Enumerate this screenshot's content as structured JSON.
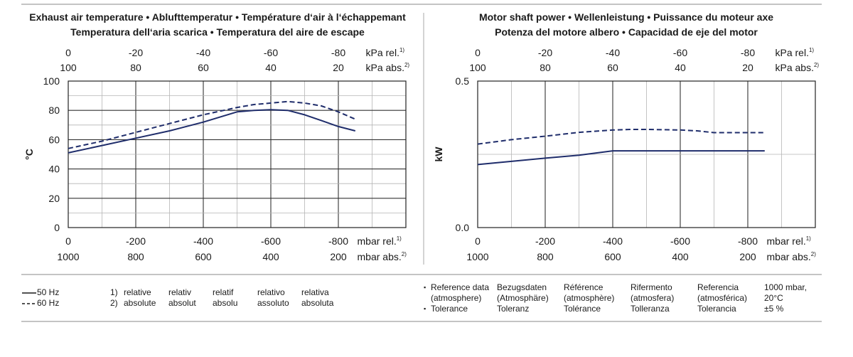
{
  "chart_data": [
    {
      "type": "line",
      "title_line1": "Exhaust air temperature  •  Ablufttemperatur  •  Température d‘air à l‘échappemant",
      "title_line2": "Temperatura dell‘aria scarica  •  Temperatura del aire de escape",
      "ylabel": "°C",
      "ylim": [
        0,
        100
      ],
      "yticks": [
        "0",
        "20",
        "40",
        "60",
        "80",
        "100"
      ],
      "xlim": [
        0,
        -1000
      ],
      "xlabel_bottom1": "mbar rel.",
      "xlabel_bottom1_sup": "1)",
      "xlabel_bottom2": "mbar abs.",
      "xlabel_bottom2_sup": "2)",
      "xticks_bottom1": [
        "0",
        "-200",
        "-400",
        "-600",
        "-800"
      ],
      "xticks_bottom2": [
        "1000",
        "800",
        "600",
        "400",
        "200"
      ],
      "xlabel_top1": "kPa rel.",
      "xlabel_top1_sup": "1)",
      "xlabel_top2": "kPa abs.",
      "xlabel_top2_sup": "2)",
      "xticks_top1": [
        "0",
        "-20",
        "-40",
        "-60",
        "-80"
      ],
      "xticks_top2": [
        "100",
        "80",
        "60",
        "40",
        "20"
      ],
      "grid": true,
      "series": [
        {
          "name": "50 Hz",
          "style": "solid",
          "x": [
            0,
            -100,
            -200,
            -300,
            -400,
            -500,
            -550,
            -600,
            -650,
            -700,
            -750,
            -800,
            -850
          ],
          "y": [
            51,
            56,
            61,
            66,
            72,
            79,
            80,
            80.5,
            80,
            77,
            73,
            69,
            66
          ]
        },
        {
          "name": "60 Hz",
          "style": "dashed",
          "x": [
            0,
            -100,
            -200,
            -300,
            -400,
            -500,
            -550,
            -600,
            -650,
            -700,
            -750,
            -800,
            -850
          ],
          "y": [
            54,
            59,
            65,
            71,
            77,
            82,
            84,
            85,
            86,
            85,
            83,
            79,
            74
          ]
        }
      ]
    },
    {
      "type": "line",
      "title_line1": "Motor shaft power  •  Wellenleistung  •  Puissance du moteur axe",
      "title_line2": "Potenza del motore albero  •  Capacidad de eje del motor",
      "ylabel": "kW",
      "ylim": [
        0,
        0.5
      ],
      "yticks": [
        "0.0",
        "0.5"
      ],
      "xlim": [
        0,
        -1000
      ],
      "xlabel_bottom1": "mbar rel.",
      "xlabel_bottom1_sup": "1)",
      "xlabel_bottom2": "mbar abs.",
      "xlabel_bottom2_sup": "2)",
      "xticks_bottom1": [
        "0",
        "-200",
        "-400",
        "-600",
        "-800"
      ],
      "xticks_bottom2": [
        "1000",
        "800",
        "600",
        "400",
        "200"
      ],
      "xlabel_top1": "kPa rel.",
      "xlabel_top1_sup": "1)",
      "xlabel_top2": "kPa abs.",
      "xlabel_top2_sup": "2)",
      "xticks_top1": [
        "0",
        "-20",
        "-40",
        "-60",
        "-80"
      ],
      "xticks_top2": [
        "100",
        "80",
        "60",
        "40",
        "20"
      ],
      "grid": true,
      "series": [
        {
          "name": "50 Hz",
          "style": "solid",
          "x": [
            0,
            -100,
            -200,
            -300,
            -400,
            -500,
            -600,
            -700,
            -800,
            -850
          ],
          "y": [
            0.215,
            0.226,
            0.237,
            0.247,
            0.262,
            0.262,
            0.262,
            0.262,
            0.262,
            0.262
          ]
        },
        {
          "name": "60 Hz",
          "style": "dashed",
          "x": [
            0,
            -100,
            -200,
            -300,
            -400,
            -450,
            -500,
            -600,
            -650,
            -700,
            -750,
            -800,
            -850
          ],
          "y": [
            0.285,
            0.3,
            0.312,
            0.325,
            0.333,
            0.335,
            0.335,
            0.333,
            0.33,
            0.324,
            0.324,
            0.324,
            0.324
          ]
        }
      ]
    }
  ],
  "legend": {
    "series_50": "50 Hz",
    "series_60": "60 Hz",
    "note1_marker": "1)",
    "note2_marker": "2)",
    "relative": [
      "relative",
      "relativ",
      "relatif",
      "relativo",
      "relativa"
    ],
    "absolute": [
      "absolute",
      "absolut",
      "absolu",
      "assoluto",
      "absoluta"
    ]
  },
  "reference": {
    "bullet": "▪",
    "columns": [
      {
        "line1": "Reference data",
        "line2": "(atmosphere)",
        "line3": "Tolerance"
      },
      {
        "line1": "Bezugsdaten",
        "line2": "(Atmosphäre)",
        "line3": "Toleranz"
      },
      {
        "line1": "Référence",
        "line2": "(atmosphère)",
        "line3": "Tolérance"
      },
      {
        "line1": "Rifermento",
        "line2": "(atmosfera)",
        "line3": "Tolleranza"
      },
      {
        "line1": "Referencia",
        "line2": "(atmosférica)",
        "line3": "Tolerancia"
      },
      {
        "line1": "1000 mbar,",
        "line2": "20°C",
        "line3": "±5 %"
      }
    ]
  },
  "colors": {
    "series": "#1f2d6b",
    "axis": "#222222",
    "grid": "#555555",
    "rule": "#888888"
  }
}
